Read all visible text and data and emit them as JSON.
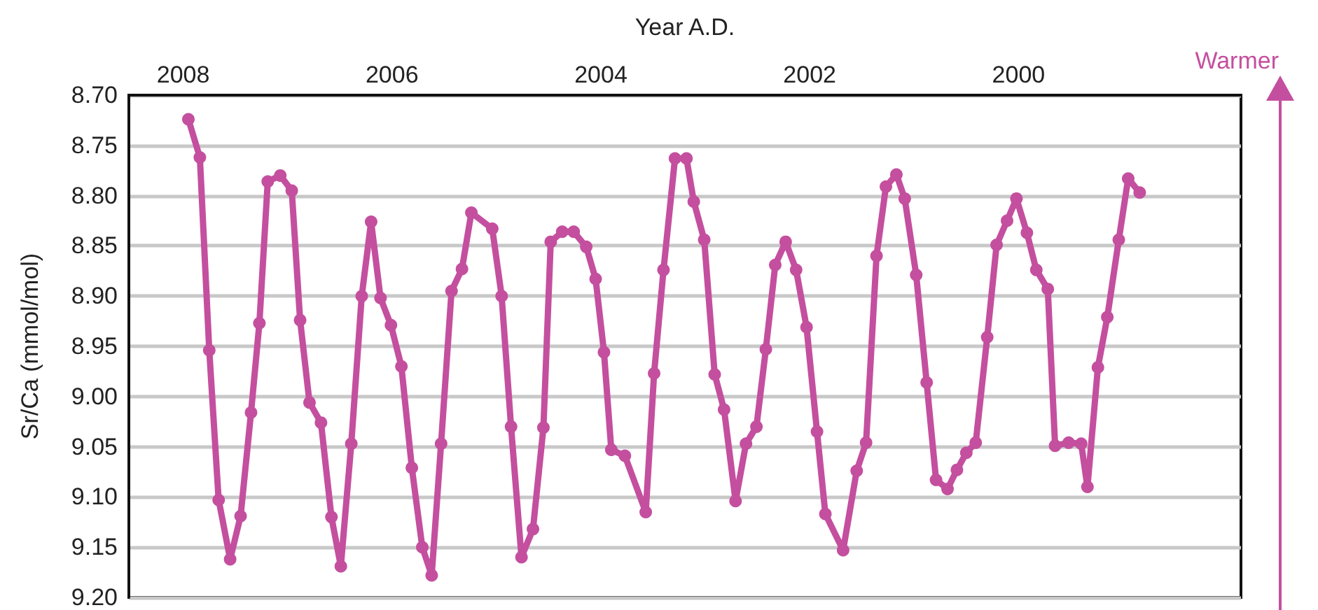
{
  "chart_data": {
    "type": "line",
    "xlabel": "Year A.D.",
    "ylabel": "Sr/Ca (mmol/mol)",
    "annotations": [
      "Warmer"
    ],
    "xlim": [
      2008.52,
      1997.87
    ],
    "xticks": [
      2008,
      2006,
      2004,
      2002,
      2000
    ],
    "ylim": [
      9.2,
      8.7
    ],
    "yticks": [
      {
        "value": 8.7,
        "label": "8.70"
      },
      {
        "value": 8.75,
        "label": "8.75"
      },
      {
        "value": 8.8,
        "label": "8.80"
      },
      {
        "value": 8.85,
        "label": "8.85"
      },
      {
        "value": 8.9,
        "label": "8.90"
      },
      {
        "value": 8.95,
        "label": "8.95"
      },
      {
        "value": 9.0,
        "label": "9.00"
      },
      {
        "value": 9.05,
        "label": "9.05"
      },
      {
        "value": 9.1,
        "label": "9.10"
      },
      {
        "value": 9.15,
        "label": "9.15"
      },
      {
        "value": 9.2,
        "label": "9.20"
      }
    ],
    "grid": "y",
    "marker": "circle",
    "line_style": "solid",
    "series": [
      {
        "color": "#c44f9f",
        "x": [
          2007.95,
          2007.84,
          2007.75,
          2007.66,
          2007.55,
          2007.45,
          2007.35,
          2007.27,
          2007.19,
          2007.07,
          2006.96,
          2006.88,
          2006.79,
          2006.68,
          2006.58,
          2006.49,
          2006.39,
          2006.29,
          2006.2,
          2006.11,
          2006.01,
          2005.91,
          2005.81,
          2005.71,
          2005.62,
          2005.53,
          2005.43,
          2005.33,
          2005.24,
          2005.04,
          2004.95,
          2004.86,
          2004.76,
          2004.65,
          2004.55,
          2004.48,
          2004.37,
          2004.26,
          2004.14,
          2004.05,
          2003.97,
          2003.9,
          2003.77,
          2003.57,
          2003.49,
          2003.4,
          2003.29,
          2003.18,
          2003.11,
          2003.01,
          2002.91,
          2002.82,
          2002.71,
          2002.61,
          2002.51,
          2002.42,
          2002.33,
          2002.23,
          2002.13,
          2002.03,
          2001.93,
          2001.85,
          2001.68,
          2001.55,
          2001.46,
          2001.36,
          2001.27,
          2001.17,
          2001.09,
          2000.98,
          2000.88,
          2000.79,
          2000.68,
          2000.59,
          2000.5,
          2000.41,
          2000.3,
          2000.21,
          2000.11,
          2000.02,
          1999.92,
          1999.83,
          1999.72,
          1999.65,
          1999.52,
          1999.4,
          1999.34,
          1999.24,
          1999.15,
          1999.04,
          1998.95,
          1998.84
        ],
        "values": [
          8.724,
          8.762,
          8.954,
          9.103,
          9.162,
          9.119,
          9.016,
          8.927,
          8.786,
          8.78,
          8.795,
          8.924,
          9.006,
          9.026,
          9.12,
          9.169,
          9.047,
          8.9,
          8.826,
          8.902,
          8.929,
          8.97,
          9.071,
          9.15,
          9.178,
          9.047,
          8.895,
          8.873,
          8.817,
          8.833,
          8.9,
          9.03,
          9.16,
          9.132,
          9.031,
          8.846,
          8.836,
          8.836,
          8.851,
          8.883,
          8.956,
          9.053,
          9.059,
          9.115,
          8.977,
          8.874,
          8.763,
          8.763,
          8.806,
          8.844,
          8.978,
          9.013,
          9.104,
          9.047,
          9.03,
          8.953,
          8.869,
          8.846,
          8.874,
          8.931,
          9.035,
          9.117,
          9.153,
          9.074,
          9.046,
          8.86,
          8.791,
          8.779,
          8.803,
          8.879,
          8.986,
          9.083,
          9.092,
          9.073,
          9.056,
          9.046,
          8.941,
          8.849,
          8.825,
          8.803,
          8.837,
          8.874,
          8.893,
          9.049,
          9.046,
          9.047,
          9.09,
          8.971,
          8.921,
          8.844,
          8.783,
          8.797
        ]
      }
    ]
  }
}
